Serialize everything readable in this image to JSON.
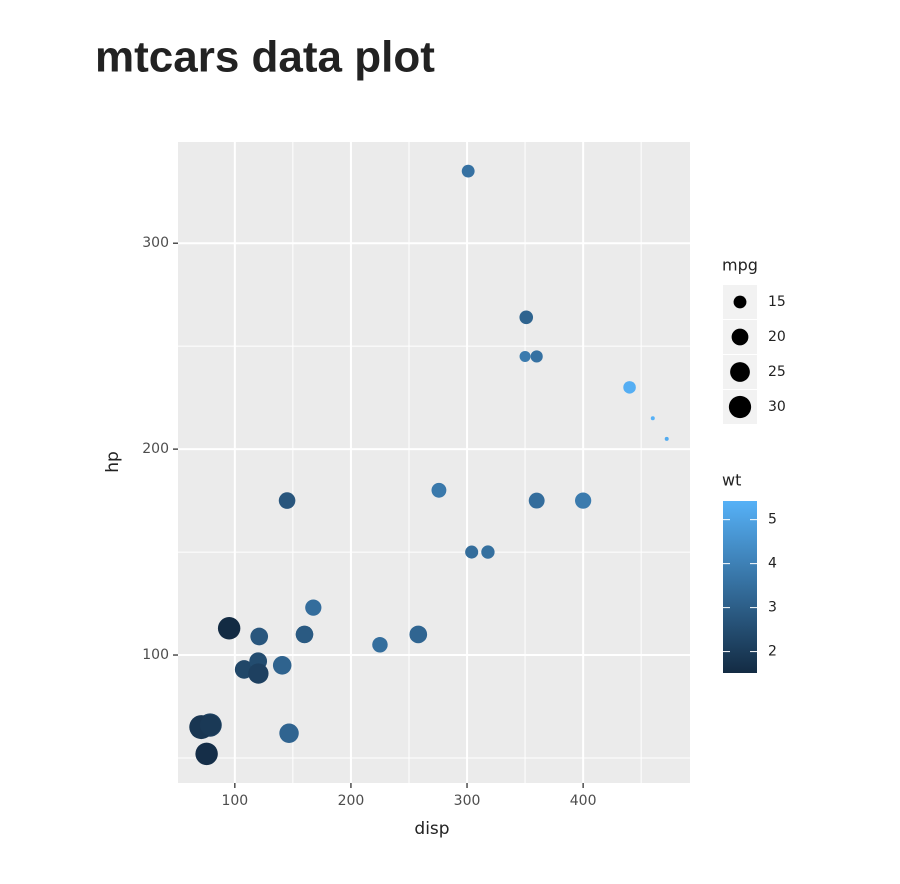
{
  "chart_data": {
    "type": "scatter",
    "title": "mtcars data plot",
    "xlabel": "disp",
    "ylabel": "hp",
    "x": [
      160,
      160,
      108,
      258,
      360,
      225,
      360,
      146.7,
      140.8,
      167.6,
      167.6,
      275.8,
      275.8,
      275.8,
      472,
      460,
      440,
      78.7,
      75.7,
      71.1,
      120.1,
      318,
      304,
      350,
      400,
      79,
      120.3,
      95.1,
      351,
      145,
      301,
      121
    ],
    "values": [
      110,
      110,
      93,
      110,
      175,
      105,
      245,
      62,
      95,
      123,
      123,
      180,
      180,
      180,
      205,
      215,
      230,
      66,
      52,
      65,
      97,
      150,
      150,
      245,
      175,
      66,
      91,
      113,
      264,
      175,
      335,
      109
    ],
    "size": [
      21,
      21,
      22.8,
      21.4,
      18.7,
      18.1,
      14.3,
      24.4,
      22.8,
      19.2,
      17.8,
      16.4,
      17.3,
      15.2,
      10.4,
      10.4,
      14.7,
      32.4,
      30.4,
      33.9,
      21.5,
      15.5,
      15.2,
      13.3,
      19.2,
      27.3,
      26,
      30.4,
      15.8,
      19.7,
      15,
      21.4
    ],
    "color_values": [
      2.62,
      2.875,
      2.32,
      3.215,
      3.44,
      3.46,
      3.57,
      3.19,
      3.15,
      3.44,
      3.44,
      4.07,
      3.73,
      3.78,
      5.25,
      5.424,
      5.345,
      2.2,
      1.615,
      1.835,
      2.465,
      3.52,
      3.435,
      3.84,
      3.845,
      1.935,
      2.14,
      1.513,
      3.17,
      2.77,
      3.57,
      2.78
    ],
    "xlim": [
      51.05,
      492.05
    ],
    "ylim": [
      37.85,
      349.15
    ],
    "xticks": [
      100,
      200,
      300,
      400
    ],
    "yticks": [
      100,
      200,
      300
    ],
    "xminor": [
      150,
      250,
      350,
      450
    ],
    "yminor": [
      50,
      150,
      250
    ],
    "grid": true,
    "size_legend": {
      "title": "mpg",
      "breaks": [
        15,
        20,
        25,
        30
      ]
    },
    "color_legend": {
      "title": "wt",
      "breaks": [
        2,
        3,
        4,
        5
      ],
      "colors": [
        "#132B43",
        "#56B1F7"
      ]
    }
  }
}
